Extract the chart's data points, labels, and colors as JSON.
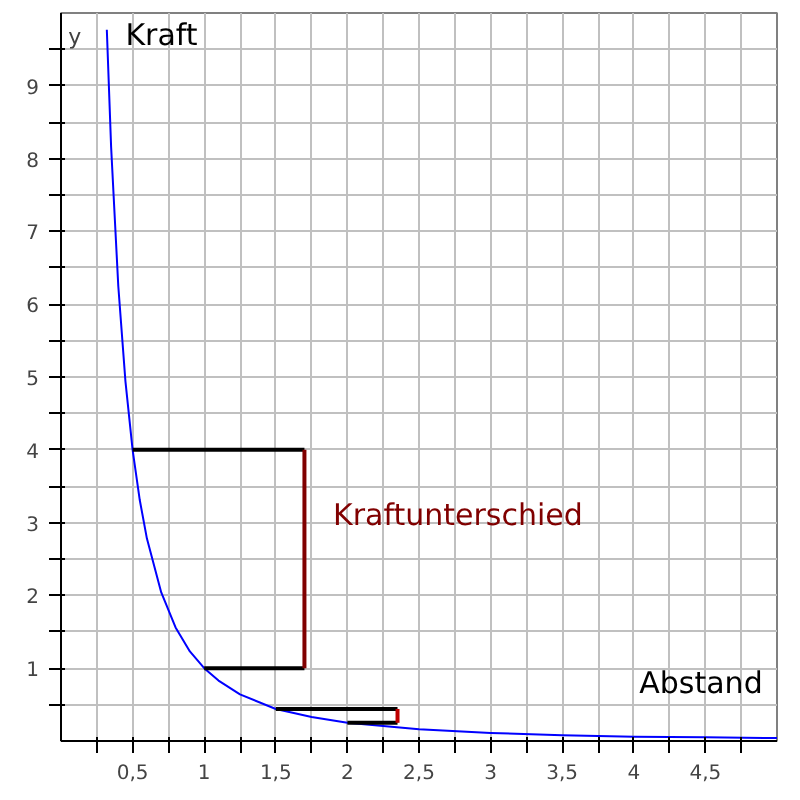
{
  "chart_data": {
    "type": "line",
    "xlabel": "Abstand",
    "ylabel": "y",
    "annotations": [
      "Kraft",
      "Kraftunterschied"
    ],
    "xlim": [
      0,
      5
    ],
    "ylim": [
      0,
      10
    ],
    "xticks": [
      {
        "value": 0.25,
        "label": null
      },
      {
        "value": 0.5,
        "label": "0,5"
      },
      {
        "value": 0.75,
        "label": null
      },
      1,
      {
        "value": 1.25,
        "label": null
      },
      {
        "value": 1.5,
        "label": "1,5"
      },
      {
        "value": 1.75,
        "label": null
      },
      2,
      {
        "value": 2.25,
        "label": null
      },
      {
        "value": 2.5,
        "label": "2,5"
      },
      {
        "value": 2.75,
        "label": null
      },
      3,
      {
        "value": 3.25,
        "label": null
      },
      {
        "value": 3.5,
        "label": "3,5"
      },
      {
        "value": 3.75,
        "label": null
      },
      4,
      {
        "value": 4.25,
        "label": null
      },
      {
        "value": 4.5,
        "label": "4,5"
      },
      {
        "value": 4.75,
        "label": null
      }
    ],
    "yticks": [
      {
        "value": 0.5,
        "label": null
      },
      1,
      {
        "value": 1.5,
        "label": null
      },
      2,
      {
        "value": 2.5,
        "label": null
      },
      3,
      {
        "value": 3.5,
        "label": null
      },
      4,
      {
        "value": 4.5,
        "label": null
      },
      5,
      {
        "value": 5.5,
        "label": null
      },
      6,
      {
        "value": 6.5,
        "label": null
      },
      7,
      {
        "value": 7.5,
        "label": null
      },
      8,
      {
        "value": 8.5,
        "label": null
      },
      9,
      {
        "value": 9.5,
        "label": null
      }
    ],
    "grid": true,
    "marker": "none",
    "line_style": "solid",
    "series": [
      {
        "color": "#0000ff",
        "x": [
          0.32,
          0.35,
          0.4,
          0.45,
          0.5,
          0.55,
          0.6,
          0.7,
          0.8,
          0.9,
          1,
          1.1,
          1.25,
          1.5,
          1.75,
          2,
          2.5,
          3,
          3.5,
          4,
          4.5,
          5
        ],
        "values": [
          9.77,
          8.16,
          6.25,
          4.94,
          4,
          3.31,
          2.78,
          2.04,
          1.56,
          1.23,
          1,
          0.83,
          0.64,
          0.44,
          0.33,
          0.25,
          0.16,
          0.11,
          0.08,
          0.06,
          0.05,
          0.04
        ]
      },
      {
        "color": "#000000",
        "x": [
          0.5,
          1.7
        ],
        "values": [
          4,
          4
        ]
      },
      {
        "color": "#000000",
        "x": [
          1,
          1.7
        ],
        "values": [
          1,
          1
        ]
      },
      {
        "color": "#800000",
        "x": [
          1.7,
          1.7
        ],
        "values": [
          1,
          4
        ]
      },
      {
        "color": "#000000",
        "x": [
          1.5,
          2.35
        ],
        "values": [
          0.44,
          0.44
        ]
      },
      {
        "color": "#000000",
        "x": [
          2,
          2.35
        ],
        "values": [
          0.25,
          0.25
        ]
      },
      {
        "color": "#c00000",
        "x": [
          2.35,
          2.35
        ],
        "values": [
          0.25,
          0.44
        ]
      }
    ]
  }
}
